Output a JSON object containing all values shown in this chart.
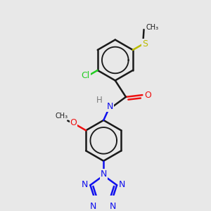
{
  "bg_color": "#e8e8e8",
  "bond_color": "#1a1a1a",
  "bond_width": 1.8,
  "atom_colors": {
    "C": "#1a1a1a",
    "H": "#7a7a7a",
    "N": "#1010ee",
    "O": "#ee1010",
    "S": "#bbbb00",
    "Cl": "#22cc22"
  },
  "font_size": 8.5
}
